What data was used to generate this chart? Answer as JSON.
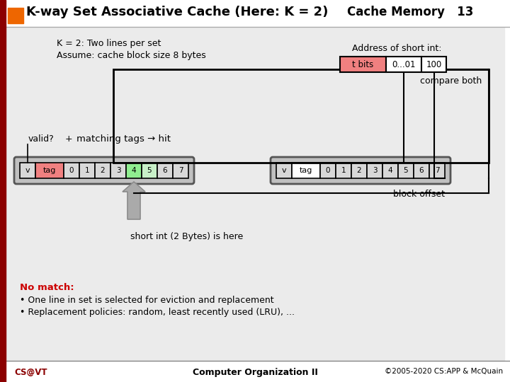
{
  "title": "K-way Set Associative Cache (Here: K = 2)",
  "slide_label": "Cache Memory   13",
  "bg_color": "#ffffff",
  "content_bg": "#ebebeb",
  "dark_red": "#8B0000",
  "orange_sq": "#ee6600",
  "subtitle1": "K = 2: Two lines per set",
  "subtitle2": "Assume: cache block size 8 bytes",
  "compare_both": "compare both",
  "block_offset": "block offset",
  "short_int": "short int (2 Bytes) is here",
  "addr_label": "Address of short int:",
  "tbits_label": "t bits",
  "addr_mid": "0...01",
  "addr_offset": "100",
  "no_match_title": "No match:",
  "no_match_1": "One line in set is selected for eviction and replacement",
  "no_match_2": "Replacement policies: random, least recently used (LRU), ...",
  "footer_left": "CS@VT",
  "footer_mid": "Computer Organization II",
  "footer_right": "©2005-2020 CS:APP & McQuain",
  "cache_cells": [
    "0",
    "1",
    "2",
    "3",
    "4",
    "5",
    "6",
    "7"
  ],
  "green_cell": 4,
  "lightgreen_cell": 5,
  "tag1_color": "#f08080",
  "tag2_color": "#ffffff",
  "cell_green": "#90ee90",
  "cell_lightgreen": "#c8f0c8",
  "tbits_color": "#f08080",
  "line_color": "#000000",
  "valid_text": "valid?",
  "plus_text": "+",
  "match_text": "matching tags → hit"
}
